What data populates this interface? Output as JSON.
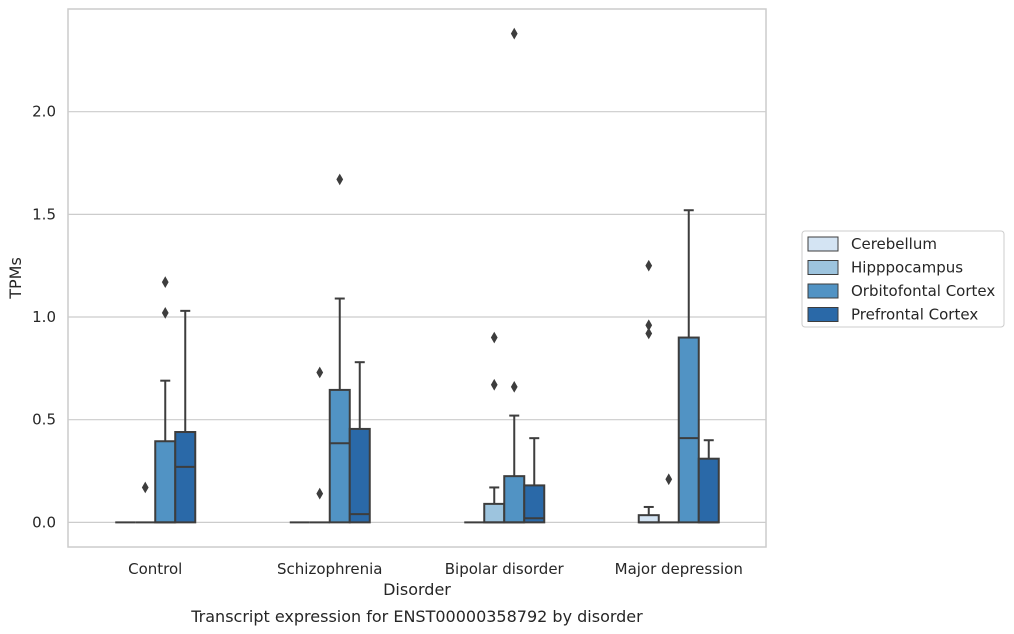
{
  "chart_data": {
    "type": "box",
    "xlabel": "Disorder",
    "ylabel": "TPMs",
    "caption": "Transcript expression for ENST00000358792 by disorder",
    "ylim": [
      -0.12,
      2.5
    ],
    "yticks": [
      0.0,
      0.5,
      1.0,
      1.5,
      2.0
    ],
    "ytick_labels": [
      "0.0",
      "0.5",
      "1.0",
      "1.5",
      "2.0"
    ],
    "grid": "horizontal",
    "legend_position": "right",
    "categories": [
      "Control",
      "Schizophrenia",
      "Bipolar disorder",
      "Major depression"
    ],
    "series": [
      {
        "name": "Cerebellum",
        "color": "#d4e4f3",
        "boxes": [
          {
            "q1": 0.0,
            "median": 0.0,
            "q3": 0.0,
            "whisker_low": 0.0,
            "whisker_high": 0.0,
            "outliers": []
          },
          {
            "q1": 0.0,
            "median": 0.0,
            "q3": 0.0,
            "whisker_low": 0.0,
            "whisker_high": 0.0,
            "outliers": []
          },
          {
            "q1": 0.0,
            "median": 0.0,
            "q3": 0.0,
            "whisker_low": 0.0,
            "whisker_high": 0.0,
            "outliers": []
          },
          {
            "q1": 0.0,
            "median": 0.0,
            "q3": 0.035,
            "whisker_low": 0.0,
            "whisker_high": 0.075,
            "outliers": [
              1.25,
              0.96,
              0.92
            ]
          }
        ]
      },
      {
        "name": "Hipppocampus",
        "color": "#9dc4de",
        "boxes": [
          {
            "q1": 0.0,
            "median": 0.0,
            "q3": 0.0,
            "whisker_low": 0.0,
            "whisker_high": 0.0,
            "outliers": [
              0.17
            ]
          },
          {
            "q1": 0.0,
            "median": 0.0,
            "q3": 0.0,
            "whisker_low": 0.0,
            "whisker_high": 0.0,
            "outliers": [
              0.14,
              0.73
            ]
          },
          {
            "q1": 0.0,
            "median": 0.0,
            "q3": 0.09,
            "whisker_low": 0.0,
            "whisker_high": 0.17,
            "outliers": [
              0.9,
              0.67
            ]
          },
          {
            "q1": 0.0,
            "median": 0.0,
            "q3": 0.0,
            "whisker_low": 0.0,
            "whisker_high": 0.0,
            "outliers": [
              0.21
            ]
          }
        ]
      },
      {
        "name": "Orbitofontal Cortex",
        "color": "#5193c4",
        "boxes": [
          {
            "q1": 0.0,
            "median": 0.0,
            "q3": 0.395,
            "whisker_low": 0.0,
            "whisker_high": 0.69,
            "outliers": [
              1.17,
              1.02
            ]
          },
          {
            "q1": 0.0,
            "median": 0.385,
            "q3": 0.645,
            "whisker_low": 0.0,
            "whisker_high": 1.09,
            "outliers": [
              1.67
            ]
          },
          {
            "q1": 0.0,
            "median": 0.0,
            "q3": 0.225,
            "whisker_low": 0.0,
            "whisker_high": 0.52,
            "outliers": [
              0.66,
              2.38
            ]
          },
          {
            "q1": 0.0,
            "median": 0.41,
            "q3": 0.9,
            "whisker_low": 0.0,
            "whisker_high": 1.52,
            "outliers": []
          }
        ]
      },
      {
        "name": "Prefrontal Cortex",
        "color": "#2a69a8",
        "boxes": [
          {
            "q1": 0.0,
            "median": 0.27,
            "q3": 0.44,
            "whisker_low": 0.0,
            "whisker_high": 1.03,
            "outliers": []
          },
          {
            "q1": 0.0,
            "median": 0.04,
            "q3": 0.455,
            "whisker_low": 0.0,
            "whisker_high": 0.78,
            "outliers": []
          },
          {
            "q1": 0.0,
            "median": 0.02,
            "q3": 0.18,
            "whisker_low": 0.0,
            "whisker_high": 0.41,
            "outliers": []
          },
          {
            "q1": 0.0,
            "median": 0.0,
            "q3": 0.31,
            "whisker_low": 0.0,
            "whisker_high": 0.4,
            "outliers": []
          }
        ]
      }
    ]
  }
}
